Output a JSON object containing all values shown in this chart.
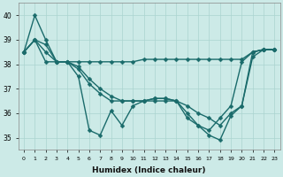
{
  "xlabel": "Humidex (Indice chaleur)",
  "bg_color": "#cceae7",
  "grid_color": "#aad4d0",
  "line_color": "#1a6b6b",
  "xlim": [
    -0.5,
    23.5
  ],
  "ylim": [
    34.5,
    40.5
  ],
  "yticks": [
    35,
    36,
    37,
    38,
    39,
    40
  ],
  "xticks": [
    0,
    1,
    2,
    3,
    4,
    5,
    6,
    7,
    8,
    9,
    10,
    11,
    12,
    13,
    14,
    15,
    16,
    17,
    18,
    19,
    20,
    21,
    22,
    23
  ],
  "lines": [
    [
      38.5,
      40.0,
      39.0,
      38.1,
      38.1,
      38.1,
      38.1,
      38.1,
      38.1,
      38.1,
      38.1,
      38.2,
      38.2,
      38.2,
      38.2,
      38.2,
      38.2,
      38.2,
      38.2,
      38.2,
      38.2,
      38.5,
      38.6,
      38.6
    ],
    [
      38.5,
      39.0,
      38.8,
      38.1,
      38.1,
      37.8,
      37.2,
      36.8,
      36.5,
      36.5,
      36.5,
      36.5,
      36.6,
      36.6,
      36.5,
      36.0,
      35.5,
      35.3,
      35.8,
      36.3,
      38.1,
      38.5,
      38.6,
      38.6
    ],
    [
      38.5,
      39.0,
      38.1,
      38.1,
      38.1,
      37.5,
      35.3,
      35.1,
      36.1,
      35.5,
      36.3,
      36.5,
      36.6,
      36.6,
      36.5,
      35.8,
      35.5,
      35.1,
      34.9,
      35.9,
      36.3,
      38.5,
      38.6,
      38.6
    ],
    [
      38.5,
      39.0,
      38.5,
      38.1,
      38.1,
      37.9,
      37.4,
      37.0,
      36.7,
      36.5,
      36.5,
      36.5,
      36.5,
      36.5,
      36.5,
      36.3,
      36.0,
      35.8,
      35.5,
      36.0,
      36.3,
      38.3,
      38.6,
      38.6
    ]
  ],
  "markersize": 2.5,
  "linewidth": 1.0,
  "xtick_fontsize": 4.5,
  "ytick_fontsize": 5.5,
  "xlabel_fontsize": 6.5
}
